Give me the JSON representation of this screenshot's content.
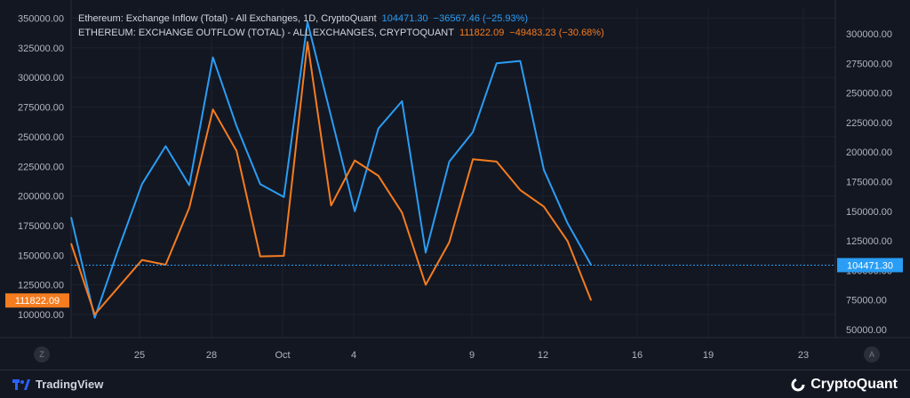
{
  "legend": {
    "inflow": {
      "label": "Ethereum: Exchange Inflow (Total) - All Exchanges, 1D, CryptoQuant",
      "value": "104471.30",
      "change": "−36567.46 (−25.93%)"
    },
    "outflow": {
      "label": "ETHEREUM: EXCHANGE OUTFLOW (TOTAL) - ALL EXCHANGES, CRYPTOQUANT",
      "value": "111822.09",
      "change": "−49483.23 (−30.68%)"
    }
  },
  "footer": {
    "tradingview": "TradingView",
    "cryptoquant": "CryptoQuant",
    "left_button": "Z",
    "right_button": "A"
  },
  "chart_data": {
    "type": "line",
    "x_ticks": [
      "25",
      "28",
      "Oct",
      "4",
      "9",
      "12",
      "16",
      "19",
      "23"
    ],
    "series": [
      {
        "name": "Ethereum: Exchange Inflow (Total) - All Exchanges",
        "color": "#2a9df4",
        "axis": "right",
        "values": [
          145000,
          60000,
          118000,
          173000,
          205000,
          172000,
          280000,
          222000,
          173000,
          162000,
          310000,
          230000,
          150000,
          220000,
          243000,
          115000,
          192000,
          217000,
          275000,
          277000,
          185000,
          140000,
          104471.3
        ]
      },
      {
        "name": "ETHEREUM: EXCHANGE OUTFLOW (TOTAL) - ALL EXCHANGES",
        "color": "#f57c1f",
        "axis": "left",
        "values": [
          160000,
          100000,
          123000,
          146000,
          142000,
          190000,
          273000,
          238000,
          149000,
          149500,
          330000,
          192000,
          230000,
          217000,
          186000,
          125000,
          161000,
          231000,
          229000,
          205000,
          191000,
          162000,
          111822.09
        ]
      }
    ],
    "left_axis": {
      "ylim": [
        85000,
        355000
      ],
      "ticks": [
        "100000.00",
        "125000.00",
        "150000.00",
        "175000.00",
        "200000.00",
        "225000.00",
        "250000.00",
        "275000.00",
        "300000.00",
        "325000.00",
        "350000.00"
      ],
      "last_label": "111822.09"
    },
    "right_axis": {
      "ylim": [
        45000,
        320000
      ],
      "ticks": [
        "50000.00",
        "75000.00",
        "100000.00",
        "125000.00",
        "150000.00",
        "175000.00",
        "200000.00",
        "225000.00",
        "250000.00",
        "275000.00",
        "300000.00"
      ],
      "last_label": "104471.30"
    },
    "grid": true,
    "background": "#131722"
  }
}
